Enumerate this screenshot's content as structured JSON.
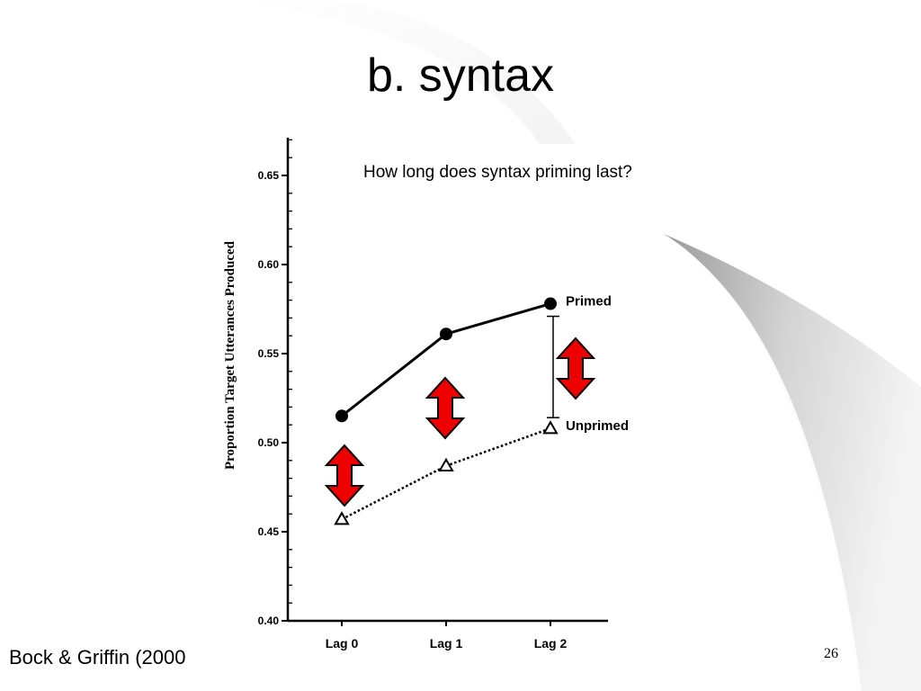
{
  "slide": {
    "title": "b. syntax",
    "question": "How long does syntax priming last?",
    "citation": "Bock & Griffin (2000",
    "page_number": "26"
  },
  "colors": {
    "arrow_fill": "#ee0000",
    "line": "#000000",
    "swoosh_gray": "#c8c8c8"
  },
  "chart_data": {
    "type": "line",
    "categories": [
      "Lag 0",
      "Lag 1",
      "Lag 2"
    ],
    "ylabel": "Proportion Target Utterances Produced",
    "ylim": [
      0.4,
      0.67
    ],
    "yticks": [
      0.4,
      0.45,
      0.5,
      0.55,
      0.6,
      0.65
    ],
    "ytick_labels": [
      "0.40",
      "0.45",
      "0.50",
      "0.55",
      "0.60",
      "0.65"
    ],
    "series": [
      {
        "name": "Primed",
        "values": [
          0.515,
          0.561,
          0.578
        ],
        "line_style": "solid",
        "marker": "filled-circle"
      },
      {
        "name": "Unprimed",
        "values": [
          0.457,
          0.487,
          0.508
        ],
        "line_style": "dotted",
        "marker": "open-triangle"
      }
    ],
    "annotations": {
      "difference_arrows": [
        "Lag 0",
        "Lag 1",
        "Lag 2"
      ],
      "error_bar_at": "Lag 2"
    }
  }
}
